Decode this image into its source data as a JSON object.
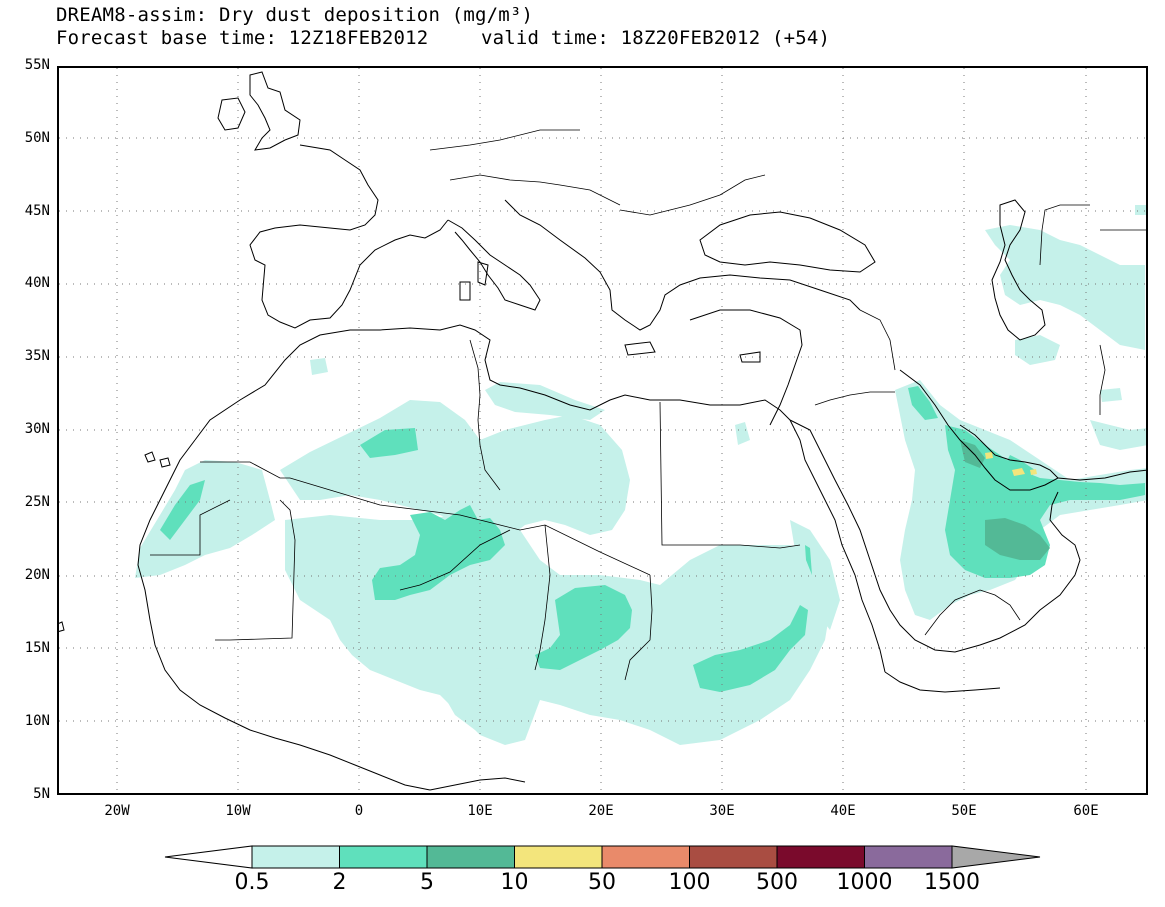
{
  "header": {
    "title_line1": "DREAM8-assim: Dry dust deposition (mg/m³)",
    "base_time": "Forecast base time: 12Z18FEB2012",
    "valid_time": "valid time: 18Z20FEB2012 (+54)"
  },
  "axes": {
    "lat_labels": [
      "55N",
      "50N",
      "45N",
      "40N",
      "35N",
      "30N",
      "25N",
      "20N",
      "15N",
      "10N",
      "5N"
    ],
    "lon_labels": [
      "20W",
      "10W",
      "0",
      "10E",
      "20E",
      "30E",
      "40E",
      "50E",
      "60E"
    ],
    "lat_range": [
      5,
      55
    ],
    "lon_range": [
      -25,
      65
    ],
    "grid": "dotted"
  },
  "legend": {
    "labels": [
      "0.5",
      "2",
      "5",
      "10",
      "50",
      "100",
      "500",
      "1000",
      "1500"
    ],
    "colors": [
      "#c5f1ea",
      "#5fe0bc",
      "#53b996",
      "#f3e57c",
      "#e98a6a",
      "#a94d42",
      "#7a0a2c",
      "#8a6a9c"
    ],
    "under_color": "#ffffff",
    "over_color": "#a8a8a8"
  },
  "colors": {
    "level_0_5": "#c5f1ea",
    "level_2": "#5fe0bc",
    "level_5": "#53b996",
    "level_10": "#f3e57c",
    "coastline": "#000000"
  }
}
